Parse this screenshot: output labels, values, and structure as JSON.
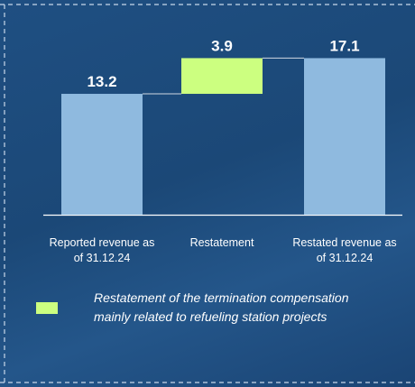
{
  "chart_data": {
    "type": "waterfall",
    "categories": [
      "Reported revenue as of 31.12.24",
      "Restatement",
      "Restated revenue as of 31.12.24"
    ],
    "values": [
      13.2,
      3.9,
      17.1
    ],
    "measures": [
      "absolute",
      "relative",
      "total"
    ],
    "colors": [
      "#8fbadf",
      "#ccff80",
      "#8fbadf"
    ],
    "legend": {
      "label": "Restatement of the termination compensation mainly related to refueling station projects"
    }
  }
}
